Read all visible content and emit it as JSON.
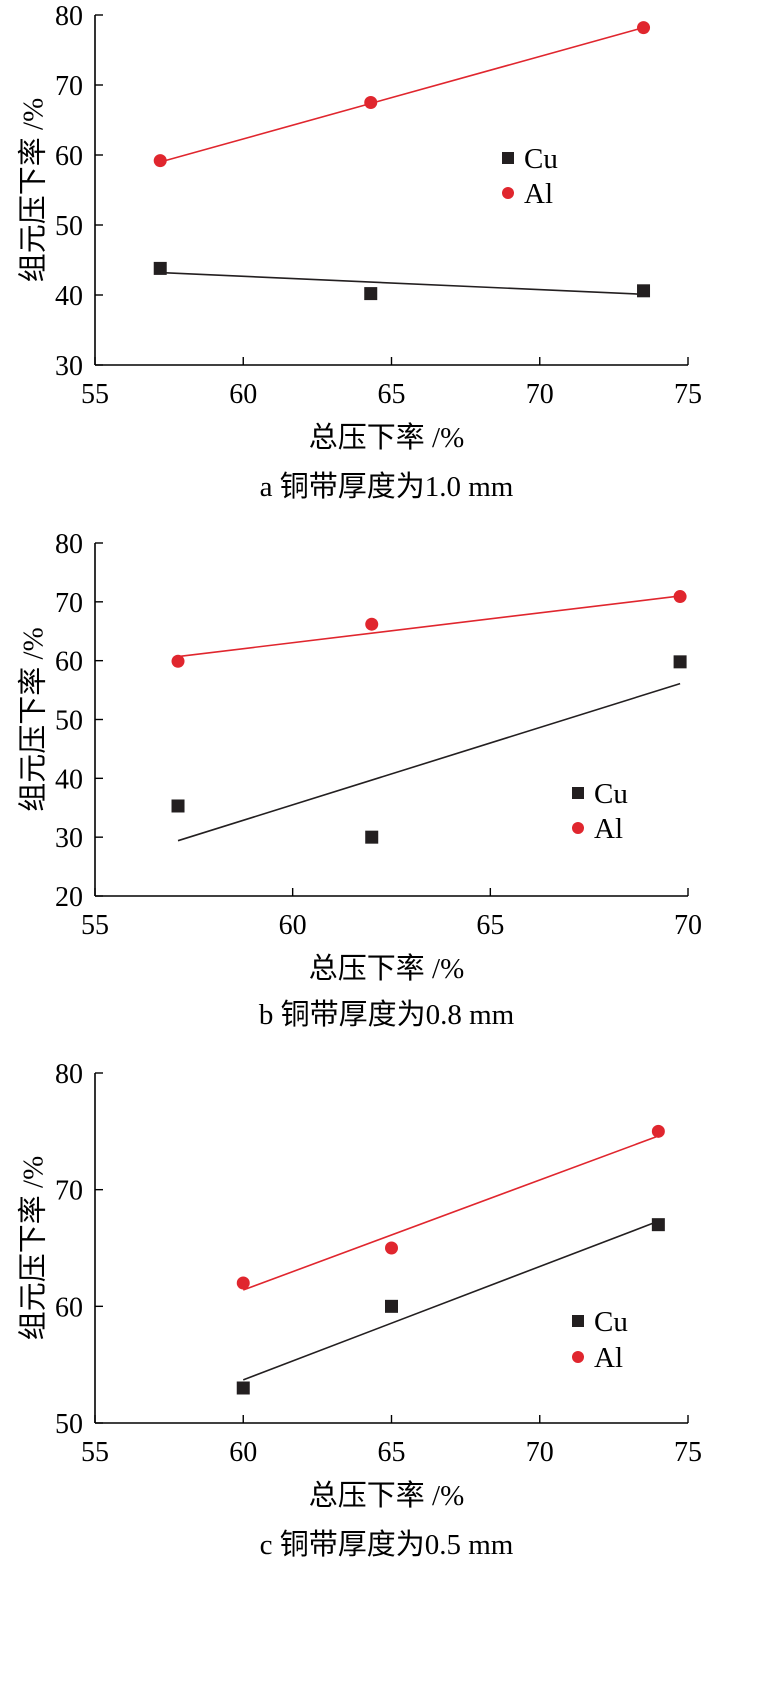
{
  "chart_data": [
    {
      "type": "scatter",
      "caption": "a 铜带厚度为1.0 mm",
      "xlabel": "总压下率 /%",
      "ylabel": "组元压下率 /%",
      "xlim": [
        55,
        75
      ],
      "ylim": [
        30,
        80
      ],
      "xticks": [
        55,
        60,
        65,
        70,
        75
      ],
      "yticks": [
        30,
        40,
        50,
        60,
        70,
        80
      ],
      "legend_position": "center-right",
      "series": [
        {
          "name": "Cu",
          "color": "#231f20",
          "marker": "square",
          "x": [
            57.2,
            64.3,
            73.5
          ],
          "y": [
            43.8,
            40.2,
            40.6
          ],
          "fit": {
            "x": [
              57.2,
              73.5
            ],
            "y": [
              43.2,
              40.1
            ]
          }
        },
        {
          "name": "Al",
          "color": "#e0262e",
          "marker": "circle",
          "x": [
            57.2,
            64.3,
            73.5
          ],
          "y": [
            59.2,
            67.5,
            78.2
          ],
          "fit": {
            "x": [
              57.2,
              73.5
            ],
            "y": [
              59.0,
              78.2
            ]
          }
        }
      ]
    },
    {
      "type": "scatter",
      "caption": "b 铜带厚度为0.8 mm",
      "xlabel": "总压下率 /%",
      "ylabel": "组元压下率 /%",
      "xlim": [
        55,
        70
      ],
      "ylim": [
        20,
        80
      ],
      "xticks": [
        55,
        60,
        65,
        70
      ],
      "yticks": [
        20,
        30,
        40,
        50,
        60,
        70,
        80
      ],
      "legend_position": "bottom-right",
      "series": [
        {
          "name": "Cu",
          "color": "#231f20",
          "marker": "square",
          "x": [
            57.1,
            62.0,
            69.8
          ],
          "y": [
            35.3,
            30.0,
            59.8
          ],
          "fit": {
            "x": [
              57.1,
              69.8
            ],
            "y": [
              29.4,
              56.1
            ]
          }
        },
        {
          "name": "Al",
          "color": "#e0262e",
          "marker": "circle",
          "x": [
            57.1,
            62.0,
            69.8
          ],
          "y": [
            59.9,
            66.2,
            70.9
          ],
          "fit": {
            "x": [
              57.1,
              69.8
            ],
            "y": [
              60.7,
              71.0
            ]
          }
        }
      ]
    },
    {
      "type": "scatter",
      "caption": "c 铜带厚度为0.5 mm",
      "xlabel": "总压下率 /%",
      "ylabel": "组元压下率 /%",
      "xlim": [
        55,
        75
      ],
      "ylim": [
        50,
        80
      ],
      "xticks": [
        55,
        60,
        65,
        70,
        75
      ],
      "yticks": [
        50,
        60,
        70,
        80
      ],
      "legend_position": "bottom-right",
      "series": [
        {
          "name": "Cu",
          "color": "#231f20",
          "marker": "square",
          "x": [
            60.0,
            65.0,
            74.0
          ],
          "y": [
            53.0,
            60.0,
            67.0
          ],
          "fit": {
            "x": [
              60.0,
              74.0
            ],
            "y": [
              53.7,
              67.3
            ]
          }
        },
        {
          "name": "Al",
          "color": "#e0262e",
          "marker": "circle",
          "x": [
            60.0,
            65.0,
            74.0
          ],
          "y": [
            62.0,
            65.0,
            75.0
          ],
          "fit": {
            "x": [
              60.0,
              74.0
            ],
            "y": [
              61.4,
              74.6
            ]
          }
        }
      ]
    }
  ]
}
